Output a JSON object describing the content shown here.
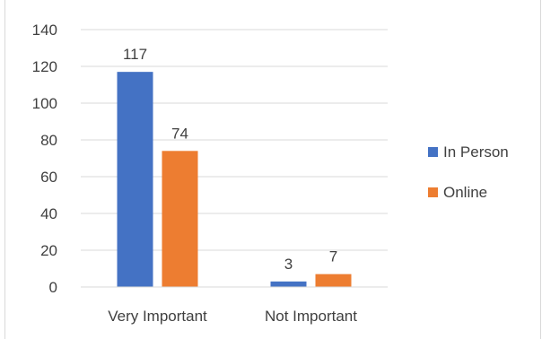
{
  "chart_data": {
    "type": "bar",
    "title": "",
    "xlabel": "",
    "ylabel": "",
    "categories": [
      "Very Important",
      "Not Important"
    ],
    "series": [
      {
        "name": "In Person",
        "values": [
          117,
          3
        ],
        "color": "#4472C4"
      },
      {
        "name": "Online",
        "values": [
          74,
          7
        ],
        "color": "#ED7D31"
      }
    ],
    "ylim": [
      0,
      140
    ],
    "yticks": [
      0,
      20,
      40,
      60,
      80,
      100,
      120,
      140
    ],
    "grid": true,
    "legend": "right"
  }
}
